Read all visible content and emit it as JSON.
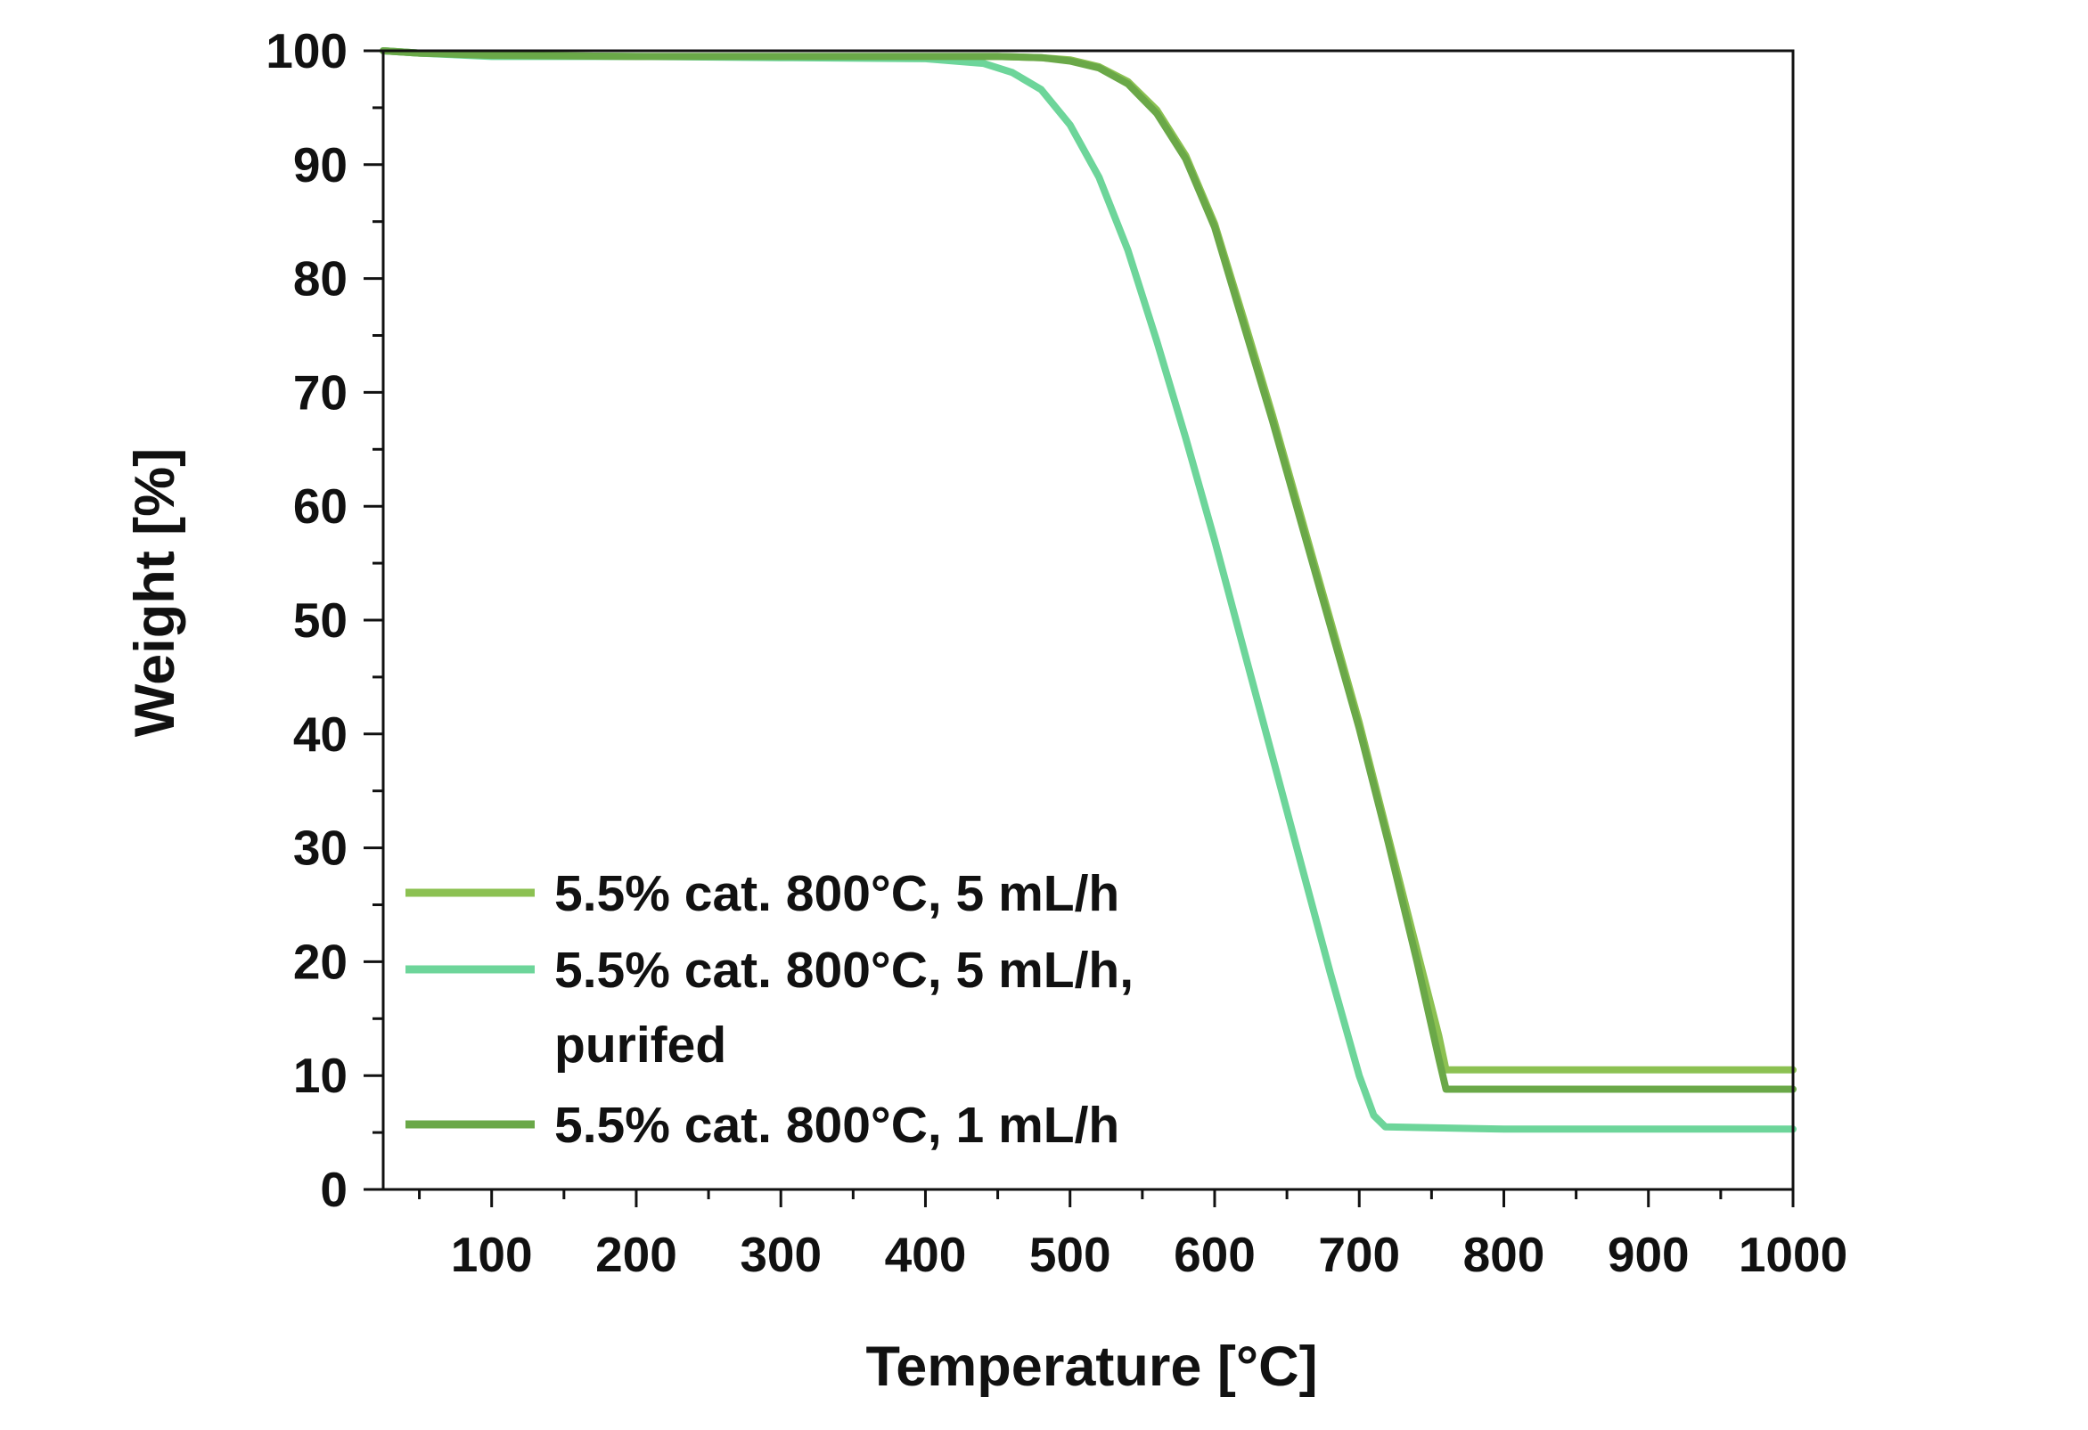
{
  "chart_data": {
    "type": "line",
    "xlabel": "Temperature [°C]",
    "ylabel": "Weight [%]",
    "xlim": [
      25,
      1000
    ],
    "ylim": [
      0,
      100
    ],
    "xticks": [
      100,
      200,
      300,
      400,
      500,
      600,
      700,
      800,
      900,
      1000
    ],
    "xtick_labels": [
      "100",
      "200",
      "300",
      "400",
      "500",
      "600",
      "700",
      "800",
      "900",
      "1000"
    ],
    "yticks": [
      0,
      10,
      20,
      30,
      40,
      50,
      60,
      70,
      80,
      90,
      100
    ],
    "ytick_labels": [
      "0",
      "10",
      "20",
      "30",
      "40",
      "50",
      "60",
      "70",
      "80",
      "90",
      "100"
    ],
    "grid": false,
    "legend_position": "lower-left",
    "series": [
      {
        "name": "5.5% cat. 800°C, 5 mL/h",
        "legend_lines": [
          "5.5% cat. 800°C, 5 mL/h"
        ],
        "color": "#8cc152",
        "x": [
          25,
          50,
          100,
          200,
          300,
          400,
          450,
          480,
          500,
          520,
          540,
          560,
          580,
          600,
          620,
          640,
          660,
          680,
          700,
          720,
          740,
          755,
          760,
          800,
          900,
          1000
        ],
        "y": [
          100,
          99.8,
          99.6,
          99.5,
          99.5,
          99.5,
          99.5,
          99.4,
          99.2,
          98.6,
          97.3,
          94.8,
          90.8,
          84.8,
          76.5,
          68,
          59,
          50,
          41,
          31,
          21,
          13.5,
          10.5,
          10.5,
          10.5,
          10.5
        ]
      },
      {
        "name": "5.5% cat. 800°C, 5 mL/h, purifed",
        "legend_lines": [
          "5.5% cat. 800°C, 5 mL/h,",
          "purifed"
        ],
        "color": "#6dd59a",
        "x": [
          25,
          50,
          100,
          200,
          300,
          400,
          440,
          460,
          480,
          500,
          520,
          540,
          560,
          580,
          600,
          620,
          640,
          660,
          680,
          700,
          710,
          718,
          800,
          900,
          1000
        ],
        "y": [
          100,
          99.8,
          99.5,
          99.5,
          99.4,
          99.3,
          98.9,
          98.1,
          96.6,
          93.5,
          88.9,
          82.5,
          74.5,
          66,
          57,
          47.5,
          38,
          28.5,
          19,
          10,
          6.5,
          5.5,
          5.3,
          5.3,
          5.3
        ]
      },
      {
        "name": "5.5% cat. 800°C, 1 mL/h",
        "legend_lines": [
          "5.5% cat. 800°C, 1 mL/h"
        ],
        "color": "#6aa848",
        "x": [
          25,
          50,
          100,
          200,
          300,
          400,
          450,
          480,
          500,
          520,
          540,
          560,
          580,
          600,
          620,
          640,
          660,
          680,
          700,
          720,
          740,
          755,
          760,
          800,
          900,
          1000
        ],
        "y": [
          100,
          99.8,
          99.6,
          99.5,
          99.5,
          99.5,
          99.5,
          99.4,
          99.1,
          98.5,
          97.1,
          94.5,
          90.5,
          84.5,
          76,
          67.5,
          58.5,
          49.5,
          40.5,
          30.5,
          20,
          11.5,
          8.8,
          8.8,
          8.8,
          8.8
        ]
      }
    ]
  }
}
